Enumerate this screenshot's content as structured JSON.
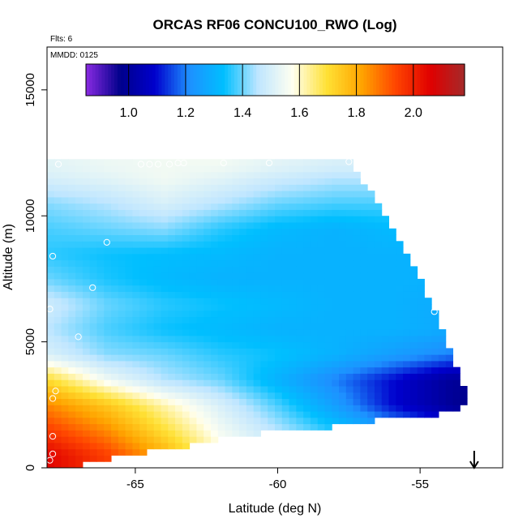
{
  "chart_data": {
    "type": "heatmap",
    "title": "ORCAS RF06 CONCU100_RWO (Log)",
    "xlabel": "Latitude (deg N)",
    "ylabel": "Altitude (m)",
    "flights_note": "Flts: 6",
    "date_note": "MMDD: 0125",
    "x_ticks": [
      {
        "value": -65,
        "label": "-65"
      },
      {
        "value": -60,
        "label": "-60"
      },
      {
        "value": -55,
        "label": "-55"
      }
    ],
    "y_ticks": [
      {
        "value": 0,
        "label": "0"
      },
      {
        "value": 5000,
        "label": "5000"
      },
      {
        "value": 10000,
        "label": "10000"
      },
      {
        "value": 15000,
        "label": "15000"
      }
    ],
    "xlim": [
      -68.1,
      -52.1
    ],
    "ylim": [
      0,
      16700
    ],
    "colorbar": {
      "range": [
        0.85,
        2.18
      ],
      "tick_values": [
        1.0,
        1.2,
        1.4,
        1.6,
        1.8,
        2.0
      ],
      "tick_labels": [
        "1.0",
        "1.2",
        "1.4",
        "1.6",
        "1.8",
        "2.0"
      ],
      "colors": [
        "#8a2be2",
        "#00008b",
        "#0000cd",
        "#1e90ff",
        "#00bfff",
        "#bfe6ff",
        "#fffff0",
        "#ffe135",
        "#ffa500",
        "#ff4500",
        "#e00000",
        "#a52a2a"
      ],
      "placement": "top, inside plot"
    },
    "field_knots": {
      "latitudes": [
        -68,
        -66,
        -64,
        -62,
        -60,
        -58,
        -56,
        -54,
        -53
      ],
      "altitudes": [
        500,
        1500,
        2500,
        3500,
        4500,
        5500,
        6500,
        7500,
        8500,
        9500,
        10500,
        11500,
        12000
      ],
      "values": [
        [
          2.05,
          1.95,
          1.8,
          1.6,
          1.5,
          1.45,
          1.4,
          1.35,
          1.35
        ],
        [
          1.95,
          1.85,
          1.7,
          1.55,
          1.45,
          1.35,
          1.25,
          1.15,
          1.1
        ],
        [
          1.85,
          1.75,
          1.62,
          1.5,
          1.38,
          1.25,
          1.1,
          1.0,
          0.95
        ],
        [
          1.7,
          1.55,
          1.45,
          1.4,
          1.3,
          1.2,
          1.1,
          1.0,
          0.98
        ],
        [
          1.5,
          1.42,
          1.4,
          1.36,
          1.34,
          1.3,
          1.25,
          1.2,
          1.18
        ],
        [
          1.45,
          1.38,
          1.34,
          1.32,
          1.3,
          1.3,
          1.3,
          1.28,
          1.26
        ],
        [
          1.48,
          1.4,
          1.36,
          1.34,
          1.32,
          1.3,
          1.3,
          1.28,
          1.28
        ],
        [
          1.4,
          1.35,
          1.32,
          1.3,
          1.3,
          1.3,
          1.3,
          1.3,
          1.3
        ],
        [
          1.36,
          1.34,
          1.33,
          1.32,
          1.3,
          1.3,
          1.3,
          1.3,
          1.3
        ],
        [
          1.38,
          1.4,
          1.42,
          1.36,
          1.32,
          1.3,
          1.32,
          1.32,
          1.32
        ],
        [
          1.42,
          1.45,
          1.5,
          1.45,
          1.4,
          1.38,
          1.38,
          1.38,
          1.38
        ],
        [
          1.5,
          1.52,
          1.55,
          1.52,
          1.48,
          1.45,
          1.45,
          1.45,
          1.45
        ],
        [
          1.52,
          1.54,
          1.55,
          1.55,
          1.52,
          1.5,
          1.5,
          1.5,
          1.5
        ]
      ],
      "top_boundary": [
        {
          "lat": -67.5,
          "alt": 12200
        },
        {
          "lat": -57.5,
          "alt": 12200
        },
        {
          "lat": -55.5,
          "alt": 8500
        },
        {
          "lat": -54.5,
          "alt": 6200
        },
        {
          "lat": -53.4,
          "alt": 2800
        }
      ],
      "bottom_boundary": [
        {
          "lat": -68,
          "alt": 0
        },
        {
          "lat": -66.5,
          "alt": 300
        },
        {
          "lat": -65,
          "alt": 700
        },
        {
          "lat": -63,
          "alt": 1000
        },
        {
          "lat": -61.5,
          "alt": 1400
        },
        {
          "lat": -58.5,
          "alt": 1700
        },
        {
          "lat": -56,
          "alt": 2100
        },
        {
          "lat": -54.5,
          "alt": 2200
        },
        {
          "lat": -53.4,
          "alt": 2600
        }
      ]
    },
    "observation_points": [
      {
        "lat": -67.7,
        "alt": 12050
      },
      {
        "lat": -64.8,
        "alt": 12050
      },
      {
        "lat": -64.5,
        "alt": 12050
      },
      {
        "lat": -64.2,
        "alt": 12050
      },
      {
        "lat": -63.8,
        "alt": 12050
      },
      {
        "lat": -63.5,
        "alt": 12100
      },
      {
        "lat": -63.3,
        "alt": 12100
      },
      {
        "lat": -61.9,
        "alt": 12100
      },
      {
        "lat": -60.3,
        "alt": 12100
      },
      {
        "lat": -57.5,
        "alt": 12150
      },
      {
        "lat": -66.0,
        "alt": 8950
      },
      {
        "lat": -67.9,
        "alt": 8400
      },
      {
        "lat": -66.5,
        "alt": 7150
      },
      {
        "lat": -54.5,
        "alt": 6200
      },
      {
        "lat": -68.0,
        "alt": 6300
      },
      {
        "lat": -67.0,
        "alt": 5200
      },
      {
        "lat": -67.8,
        "alt": 3050
      },
      {
        "lat": -67.9,
        "alt": 2750
      },
      {
        "lat": -53.1,
        "alt": 2550
      },
      {
        "lat": -67.9,
        "alt": 1250
      },
      {
        "lat": -67.9,
        "alt": 550
      },
      {
        "lat": -68.0,
        "alt": 300
      }
    ],
    "arrow_marker": {
      "lat": -53.1,
      "direction": "down"
    }
  }
}
